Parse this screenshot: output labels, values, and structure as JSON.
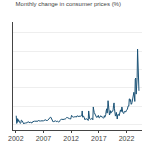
{
  "chart_data": {
    "type": "line",
    "title": "Monthly change in consumer prices (%)",
    "x": [
      2002.08,
      2002.17,
      2002.25,
      2002.33,
      2002.42,
      2002.5,
      2002.58,
      2002.67,
      2002.75,
      2002.83,
      2002.92,
      2003.0,
      2003.08,
      2003.17,
      2003.25,
      2003.33,
      2003.42,
      2003.5,
      2003.58,
      2003.67,
      2003.75,
      2003.83,
      2003.92,
      2004.0,
      2004.08,
      2004.17,
      2004.25,
      2004.33,
      2004.42,
      2004.5,
      2004.58,
      2004.67,
      2004.75,
      2004.83,
      2004.92,
      2005.0,
      2005.08,
      2005.17,
      2005.25,
      2005.33,
      2005.42,
      2005.5,
      2005.58,
      2005.67,
      2005.75,
      2005.83,
      2005.92,
      2006.0,
      2006.08,
      2006.17,
      2006.25,
      2006.33,
      2006.42,
      2006.5,
      2006.58,
      2006.67,
      2006.75,
      2006.83,
      2006.92,
      2007.0,
      2007.08,
      2007.17,
      2007.25,
      2007.33,
      2007.42,
      2007.5,
      2007.58,
      2007.67,
      2007.75,
      2007.83,
      2007.92,
      2008.0,
      2008.08,
      2008.17,
      2008.25,
      2008.33,
      2008.42,
      2008.5,
      2008.58,
      2008.67,
      2008.75,
      2008.83,
      2008.92,
      2009.0,
      2009.08,
      2009.17,
      2009.25,
      2009.33,
      2009.42,
      2009.5,
      2009.58,
      2009.67,
      2009.75,
      2009.83,
      2009.92,
      2010.0,
      2010.08,
      2010.17,
      2010.25,
      2010.33,
      2010.42,
      2010.5,
      2010.58,
      2010.67,
      2010.75,
      2010.83,
      2010.92,
      2011.0,
      2011.08,
      2011.17,
      2011.25,
      2011.33,
      2011.42,
      2011.5,
      2011.58,
      2011.67,
      2011.75,
      2011.83,
      2011.92,
      2012.0,
      2012.08,
      2012.17,
      2012.25,
      2012.33,
      2012.42,
      2012.5,
      2012.58,
      2012.67,
      2012.75,
      2012.83,
      2012.92,
      2013.0,
      2013.08,
      2013.17,
      2013.25,
      2013.33,
      2013.42,
      2013.5,
      2013.58,
      2013.67,
      2013.75,
      2013.83,
      2013.92,
      2014.0,
      2014.08,
      2014.17,
      2014.25,
      2014.33,
      2014.42,
      2014.5,
      2014.58,
      2014.67,
      2014.75,
      2014.83,
      2014.92,
      2015.0,
      2015.08,
      2015.17,
      2015.25,
      2015.33,
      2015.42,
      2015.5,
      2015.58,
      2015.67,
      2015.75,
      2015.83,
      2015.92,
      2016.0,
      2016.08,
      2016.17,
      2016.25,
      2016.33,
      2016.42,
      2016.5,
      2016.58,
      2016.67,
      2016.75,
      2016.83,
      2016.92,
      2017.0,
      2017.08,
      2017.17,
      2017.25,
      2017.33,
      2017.42,
      2017.5,
      2017.58,
      2017.67,
      2017.75,
      2017.83,
      2017.92,
      2018.0,
      2018.08,
      2018.17,
      2018.25,
      2018.33,
      2018.42,
      2018.5,
      2018.58,
      2018.67,
      2018.75,
      2018.83,
      2018.92,
      2019.0,
      2019.08,
      2019.17,
      2019.25,
      2019.33,
      2019.42,
      2019.5,
      2019.58,
      2019.67,
      2019.75,
      2019.83,
      2019.92,
      2020.0,
      2020.08,
      2020.17,
      2020.25,
      2020.33,
      2020.42,
      2020.5,
      2020.58,
      2020.67,
      2020.75,
      2020.83,
      2020.92,
      2021.0,
      2021.08,
      2021.17,
      2021.25,
      2021.33,
      2021.42,
      2021.5,
      2021.58,
      2021.67,
      2021.75,
      2021.83,
      2021.92,
      2022.0,
      2022.08,
      2022.17,
      2022.25,
      2022.33,
      2022.42,
      2022.5,
      2022.58,
      2022.67,
      2022.75,
      2022.83,
      2022.92,
      2023.0,
      2023.08,
      2023.17,
      2023.25,
      2023.33,
      2023.42,
      2023.5,
      2023.58,
      2023.67,
      2023.75,
      2023.83,
      2023.92,
      2024.0,
      2024.08,
      2024.17,
      2024.25
    ],
    "values": [
      2.4,
      0.3,
      0.5,
      1.6,
      0.8,
      1.3,
      1.0,
      0.6,
      0.4,
      0.3,
      0.5,
      1.2,
      1.1,
      1.0,
      0.5,
      0.3,
      0.2,
      0.4,
      0.3,
      0.3,
      0.4,
      0.4,
      0.3,
      0.4,
      0.5,
      0.6,
      0.8,
      0.6,
      0.5,
      0.5,
      0.5,
      0.6,
      0.5,
      0.4,
      0.4,
      0.7,
      0.8,
      0.8,
      0.8,
      0.9,
      0.9,
      0.9,
      0.8,
      0.8,
      0.9,
      0.9,
      0.8,
      0.9,
      1.1,
      1.0,
      1.0,
      0.9,
      0.9,
      1.0,
      1.0,
      0.9,
      0.9,
      0.9,
      0.8,
      1.0,
      1.1,
      1.2,
      1.1,
      1.2,
      1.3,
      1.1,
      1.0,
      1.1,
      1.1,
      1.3,
      1.2,
      1.4,
      1.6,
      1.8,
      2.0,
      2.0,
      1.7,
      1.4,
      1.1,
      0.9,
      0.7,
      0.8,
      0.9,
      1.0,
      1.1,
      1.0,
      0.9,
      0.8,
      0.8,
      0.9,
      0.8,
      0.7,
      0.7,
      0.8,
      0.8,
      1.1,
      1.3,
      1.5,
      1.5,
      1.4,
      1.4,
      1.3,
      1.2,
      1.3,
      1.4,
      1.5,
      1.4,
      1.6,
      1.8,
      1.8,
      2.0,
      1.9,
      1.8,
      1.6,
      1.5,
      1.6,
      1.6,
      1.6,
      1.5,
      2.0,
      2.5,
      2.3,
      2.1,
      2.0,
      2.0,
      2.1,
      2.2,
      2.1,
      2.1,
      2.2,
      2.0,
      2.2,
      2.4,
      2.3,
      2.2,
      2.2,
      2.1,
      2.2,
      2.3,
      2.3,
      2.3,
      2.4,
      2.4,
      3.7,
      2.0,
      2.3,
      2.3,
      1.7,
      1.5,
      1.3,
      1.5,
      1.4,
      1.5,
      1.6,
      1.5,
      1.2,
      1.1,
      3.7,
      1.8,
      1.6,
      1.5,
      1.4,
      1.4,
      1.5,
      1.7,
      1.6,
      1.3,
      4.8,
      4.0,
      3.3,
      3.0,
      2.6,
      2.4,
      2.2,
      2.0,
      1.9,
      2.2,
      2.4,
      2.5,
      1.9,
      1.8,
      2.0,
      2.4,
      2.4,
      2.1,
      2.2,
      2.2,
      2.0,
      1.7,
      1.7,
      1.9,
      2.4,
      2.0,
      2.3,
      2.7,
      3.7,
      4.3,
      3.1,
      3.9,
      6.5,
      5.4,
      3.2,
      2.6,
      2.9,
      3.8,
      3.1,
      3.5,
      3.6,
      3.7,
      3.6,
      4.0,
      5.3,
      5.9,
      4.3,
      3.7,
      2.3,
      2.5,
      3.3,
      1.5,
      1.5,
      2.7,
      2.7,
      2.8,
      2.4,
      2.8,
      3.2,
      4.0,
      3.5,
      3.6,
      4.8,
      3.3,
      3.3,
      3.2,
      3.0,
      3.5,
      3.5,
      3.5,
      3.5,
      3.5,
      3.9,
      4.0,
      4.2,
      4.8,
      5.1,
      5.0,
      7.0,
      7.0,
      6.3,
      6.8,
      5.5,
      5.6,
      6.0,
      6.6,
      7.7,
      8.4,
      8.8,
      7.8,
      6.3,
      12.4,
      12.7,
      8.3,
      11.0,
      12.8,
      20.6,
      13.2,
      11.0,
      9.2
    ],
    "color": "#1a5276",
    "xlim": [
      2001.5,
      2024.8
    ],
    "xticks": [
      2002,
      2007,
      2012,
      2017,
      2022
    ],
    "ylim": [
      -1.5,
      28
    ],
    "yticks": [
      0,
      5,
      10,
      15,
      20,
      25
    ],
    "grid": true,
    "tick_labels": "x"
  }
}
